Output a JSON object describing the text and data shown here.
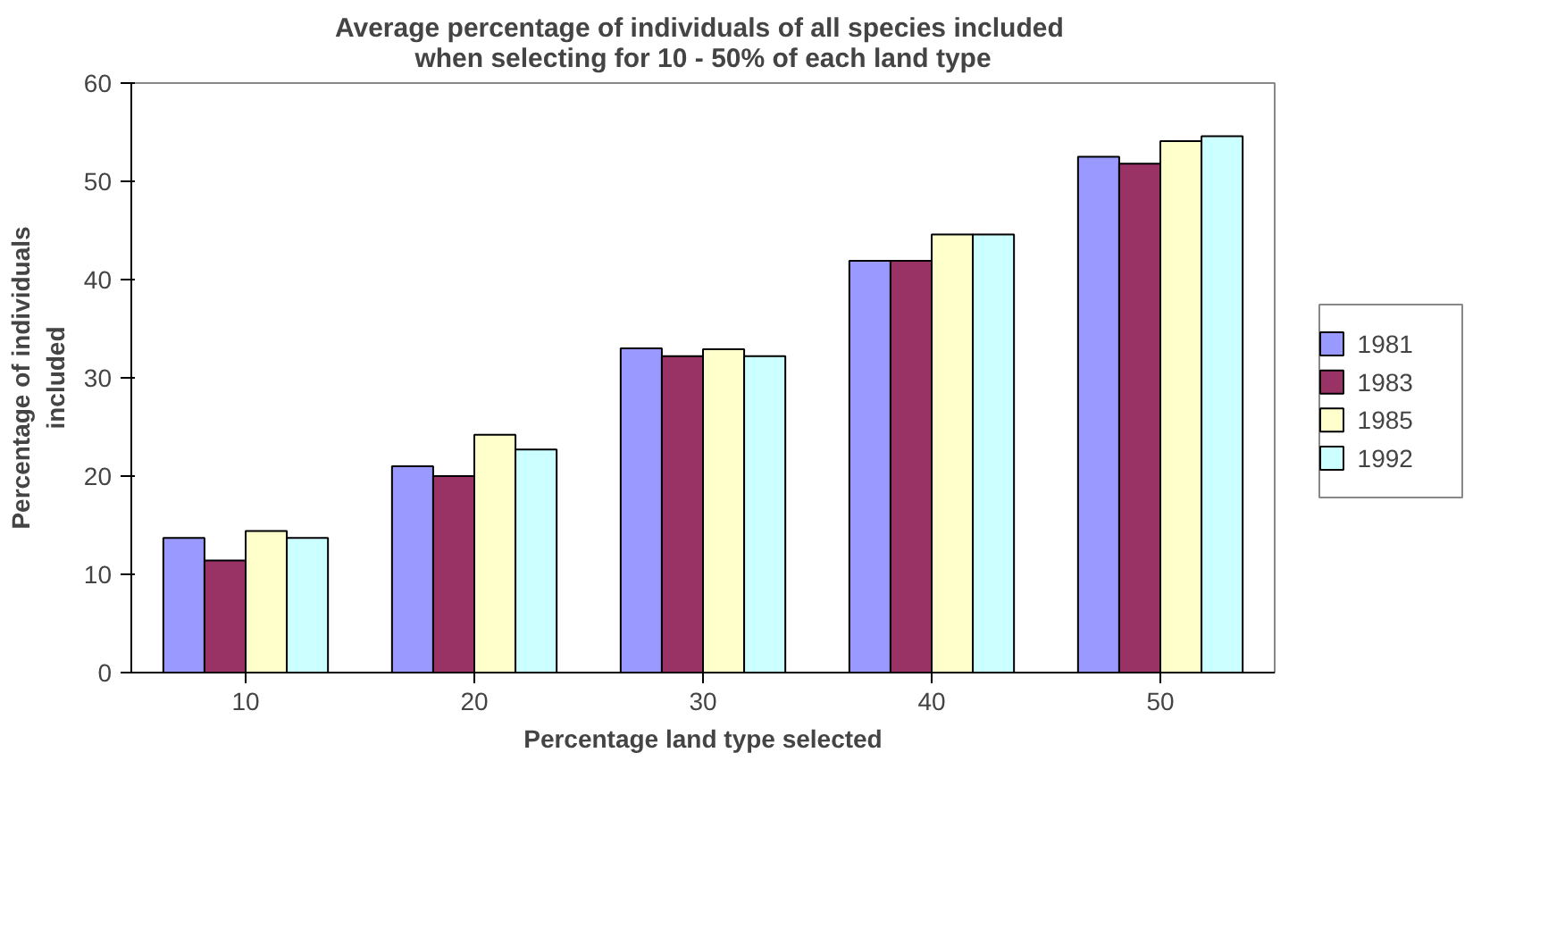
{
  "chart_data": {
    "type": "bar",
    "title": "Average percentage of individuals  of all species included\nwhen selecting for 10 - 50% of each land type",
    "xlabel": "Percentage land type selected",
    "ylabel": "Percentage of individuals\nincluded",
    "categories": [
      "10",
      "20",
      "30",
      "40",
      "50"
    ],
    "series": [
      {
        "name": "1981",
        "color": "#9999ff",
        "values": [
          13.7,
          21.0,
          33.0,
          41.9,
          52.5
        ]
      },
      {
        "name": "1983",
        "color": "#993366",
        "values": [
          11.4,
          20.0,
          32.2,
          41.9,
          51.8
        ]
      },
      {
        "name": "1985",
        "color": "#ffffcc",
        "values": [
          14.4,
          24.2,
          32.9,
          44.6,
          54.1
        ]
      },
      {
        "name": "1992",
        "color": "#ccffff",
        "values": [
          13.7,
          22.7,
          32.2,
          44.6,
          54.6
        ]
      }
    ],
    "ylim": [
      0,
      60
    ],
    "yticks": [
      0,
      10,
      20,
      30,
      40,
      50,
      60
    ],
    "grid": false,
    "legend": "right"
  }
}
